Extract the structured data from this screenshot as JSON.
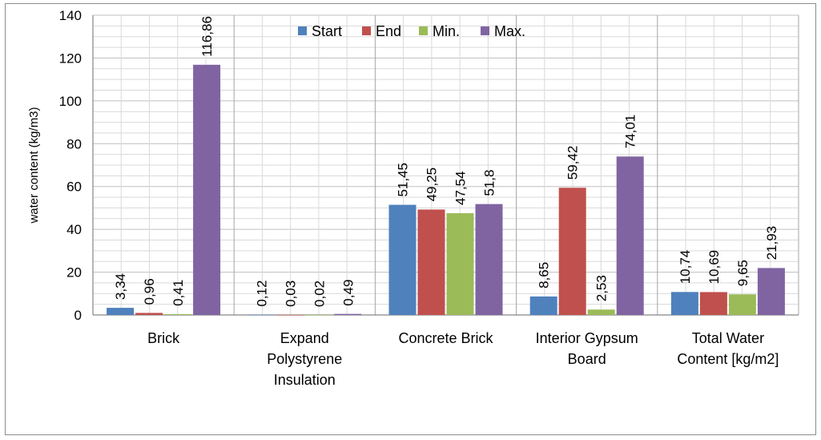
{
  "chart_data": {
    "type": "bar",
    "title": "",
    "xlabel": "",
    "ylabel": "water content (kg/m3)",
    "ylim": [
      0,
      140
    ],
    "yticks": [
      0,
      20,
      40,
      60,
      80,
      100,
      120,
      140
    ],
    "grid": true,
    "legend_position": "top-center",
    "categories": [
      [
        "Brick"
      ],
      [
        "Expand",
        "Polystyrene",
        "Insulation"
      ],
      [
        "Concrete Brick"
      ],
      [
        "Interior Gypsum",
        "Board"
      ],
      [
        "Total Water",
        "Content [kg/m2]"
      ]
    ],
    "series": [
      {
        "name": "Start",
        "color": "#4f81bd",
        "values": [
          3.34,
          0.12,
          51.45,
          8.65,
          10.74
        ],
        "labels": [
          "3,34",
          "0,12",
          "51,45",
          "8,65",
          "10,74"
        ]
      },
      {
        "name": "End",
        "color": "#c0504d",
        "values": [
          0.96,
          0.03,
          49.25,
          59.42,
          10.69
        ],
        "labels": [
          "0,96",
          "0,03",
          "49,25",
          "59,42",
          "10,69"
        ]
      },
      {
        "name": "Min.",
        "color": "#9bbb59",
        "values": [
          0.41,
          0.02,
          47.54,
          2.53,
          9.65
        ],
        "labels": [
          "0,41",
          "0,02",
          "47,54",
          "2,53",
          "9,65"
        ]
      },
      {
        "name": "Max.",
        "color": "#8064a2",
        "values": [
          116.86,
          0.49,
          51.8,
          74.01,
          21.93
        ],
        "labels": [
          "116,86",
          "0,49",
          "51,8",
          "74,01",
          "21,93"
        ]
      }
    ]
  }
}
